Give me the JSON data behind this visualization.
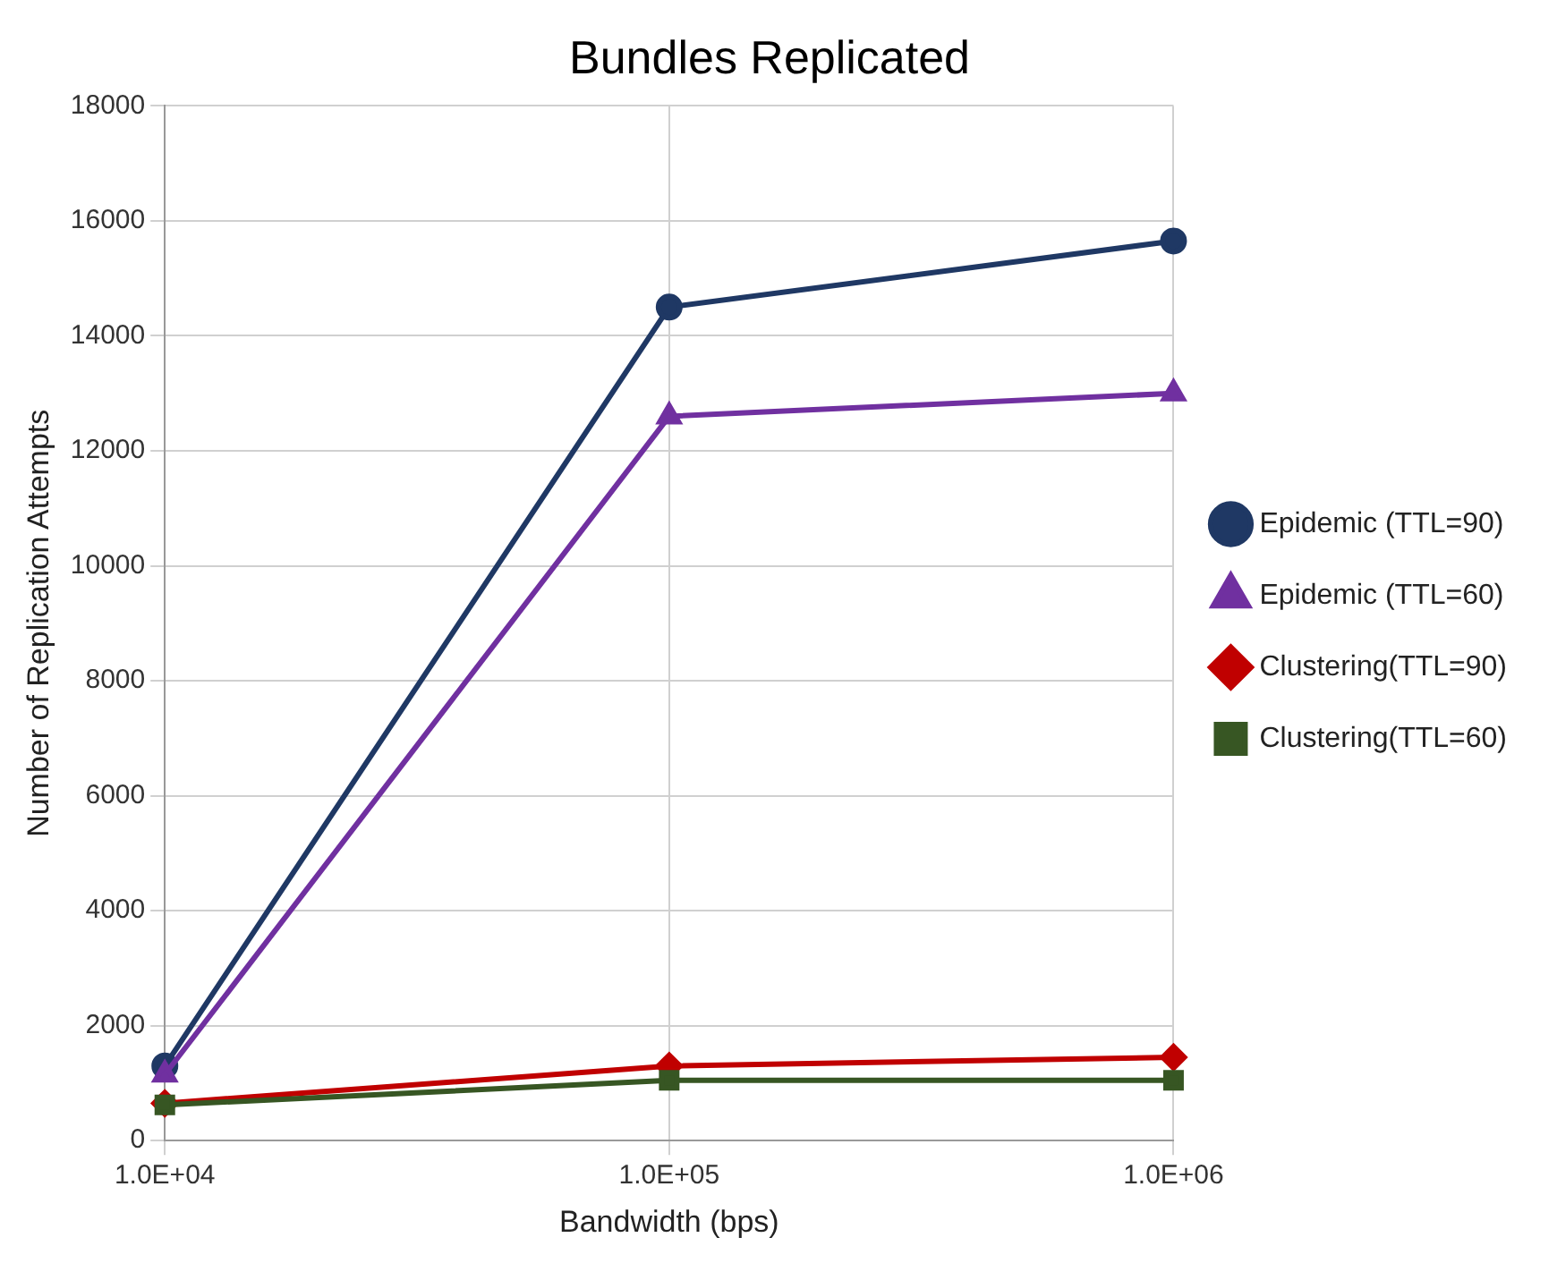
{
  "chart_data": {
    "type": "line",
    "title": "Bundles Replicated",
    "xlabel": "Bandwidth (bps)",
    "ylabel": "Number of Replication Attempts",
    "x": [
      10000,
      100000,
      1000000
    ],
    "series": [
      {
        "name": "Epidemic (TTL=90)",
        "color": "#1f3864",
        "marker": "circle",
        "values": [
          1300,
          14500,
          15650
        ]
      },
      {
        "name": "Epidemic (TTL=60)",
        "color": "#7030a0",
        "marker": "triangle",
        "values": [
          1150,
          12600,
          13000
        ]
      },
      {
        "name": "Clustering(TTL=90)",
        "color": "#c00000",
        "marker": "diamond",
        "values": [
          650,
          1300,
          1450
        ]
      },
      {
        "name": "Clustering(TTL=60)",
        "color": "#375623",
        "marker": "square",
        "values": [
          620,
          1050,
          1050
        ]
      }
    ],
    "log": "x",
    "xlim": [
      10000,
      1000000
    ],
    "xticks": [
      {
        "value": 10000,
        "label": "1.0E+04"
      },
      {
        "value": 100000,
        "label": "1.0E+05"
      },
      {
        "value": 1000000,
        "label": "1.0E+06"
      }
    ],
    "ylim": [
      0,
      18000
    ],
    "yticks": [
      0,
      2000,
      4000,
      6000,
      8000,
      10000,
      12000,
      14000,
      16000,
      18000
    ],
    "grid": true,
    "legend": "right"
  }
}
